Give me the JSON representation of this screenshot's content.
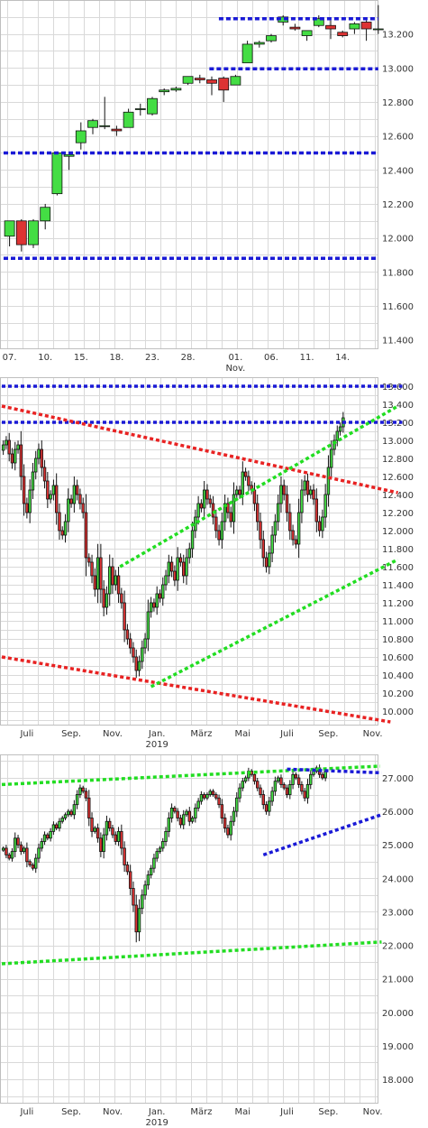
{
  "colors": {
    "up": "#44dd44",
    "down": "#dd3333",
    "blue_line": "#1a1ad6",
    "red_line": "#e82222",
    "green_line": "#22dd22",
    "grid": "#d9d9d9",
    "text": "#333333"
  },
  "chart_data": [
    {
      "type": "candlestick",
      "ylim": [
        11350,
        13400
      ],
      "yticks": [
        11400,
        11600,
        11800,
        12000,
        12200,
        12400,
        12600,
        12800,
        13000,
        13200
      ],
      "ytick_labels": [
        "11.400",
        "11.600",
        "11.800",
        "12.000",
        "12.200",
        "12.400",
        "12.600",
        "12.800",
        "13.000",
        "13.200"
      ],
      "xticks": [
        {
          "label": "07.",
          "sub": "",
          "i": 0
        },
        {
          "label": "10.",
          "sub": "",
          "i": 3
        },
        {
          "label": "15.",
          "sub": "",
          "i": 6
        },
        {
          "label": "18.",
          "sub": "",
          "i": 9
        },
        {
          "label": "23.",
          "sub": "",
          "i": 12
        },
        {
          "label": "28.",
          "sub": "",
          "i": 15
        },
        {
          "label": "01.",
          "sub": "Nov.",
          "i": 19
        },
        {
          "label": "06.",
          "sub": "",
          "i": 22
        },
        {
          "label": "11.",
          "sub": "",
          "i": 25
        },
        {
          "label": "14.",
          "sub": "",
          "i": 28
        }
      ],
      "candles": [
        {
          "o": 12010,
          "h": 12100,
          "l": 11950,
          "c": 12100
        },
        {
          "o": 12100,
          "h": 12110,
          "l": 11920,
          "c": 11960
        },
        {
          "o": 11960,
          "h": 12110,
          "l": 11940,
          "c": 12100
        },
        {
          "o": 12100,
          "h": 12200,
          "l": 12050,
          "c": 12180
        },
        {
          "o": 12260,
          "h": 12500,
          "l": 12250,
          "c": 12500
        },
        {
          "o": 12480,
          "h": 12500,
          "l": 12400,
          "c": 12490
        },
        {
          "o": 12560,
          "h": 12680,
          "l": 12520,
          "c": 12630
        },
        {
          "o": 12650,
          "h": 12700,
          "l": 12610,
          "c": 12690
        },
        {
          "o": 12660,
          "h": 12830,
          "l": 12640,
          "c": 12660
        },
        {
          "o": 12640,
          "h": 12660,
          "l": 12600,
          "c": 12630
        },
        {
          "o": 12650,
          "h": 12760,
          "l": 12650,
          "c": 12740
        },
        {
          "o": 12760,
          "h": 12790,
          "l": 12720,
          "c": 12760
        },
        {
          "o": 12730,
          "h": 12830,
          "l": 12720,
          "c": 12820
        },
        {
          "o": 12860,
          "h": 12880,
          "l": 12840,
          "c": 12870
        },
        {
          "o": 12870,
          "h": 12890,
          "l": 12860,
          "c": 12880
        },
        {
          "o": 12910,
          "h": 12950,
          "l": 12900,
          "c": 12950
        },
        {
          "o": 12940,
          "h": 12960,
          "l": 12910,
          "c": 12930
        },
        {
          "o": 12930,
          "h": 12950,
          "l": 12840,
          "c": 12910
        },
        {
          "o": 12940,
          "h": 12950,
          "l": 12800,
          "c": 12870
        },
        {
          "o": 12900,
          "h": 12960,
          "l": 12900,
          "c": 12950
        },
        {
          "o": 13030,
          "h": 13160,
          "l": 13030,
          "c": 13140
        },
        {
          "o": 13140,
          "h": 13160,
          "l": 13120,
          "c": 13150
        },
        {
          "o": 13160,
          "h": 13200,
          "l": 13150,
          "c": 13190
        },
        {
          "o": 13270,
          "h": 13310,
          "l": 13250,
          "c": 13300
        },
        {
          "o": 13240,
          "h": 13260,
          "l": 13220,
          "c": 13230
        },
        {
          "o": 13190,
          "h": 13220,
          "l": 13160,
          "c": 13220
        },
        {
          "o": 13250,
          "h": 13310,
          "l": 13240,
          "c": 13290
        },
        {
          "o": 13250,
          "h": 13280,
          "l": 13170,
          "c": 13230
        },
        {
          "o": 13210,
          "h": 13220,
          "l": 13180,
          "c": 13190
        },
        {
          "o": 13230,
          "h": 13270,
          "l": 13200,
          "c": 13260
        },
        {
          "o": 13270,
          "h": 13280,
          "l": 13160,
          "c": 13230
        },
        {
          "o": 13230,
          "h": 13370,
          "l": 13200,
          "c": 13230
        }
      ],
      "lines": [
        {
          "color": "blue",
          "x": [
            17.6,
            31
          ],
          "y": [
            13290,
            13290
          ]
        },
        {
          "color": "blue",
          "x": [
            16.8,
            31
          ],
          "y": [
            12995,
            12995
          ]
        },
        {
          "color": "blue",
          "x": [
            -0.5,
            31
          ],
          "y": [
            12500,
            12500
          ]
        },
        {
          "color": "blue",
          "x": [
            -0.5,
            31
          ],
          "y": [
            11880,
            11880
          ]
        }
      ]
    },
    {
      "type": "candlestick",
      "ylim": [
        9850,
        13700
      ],
      "yticks": [
        10000,
        10200,
        10400,
        10600,
        10800,
        11000,
        11200,
        11400,
        11600,
        11800,
        12000,
        12200,
        12400,
        12600,
        12800,
        13000,
        13200,
        13400,
        13600
      ],
      "ytick_labels": [
        "10.000",
        "10.200",
        "10.400",
        "10.600",
        "10.800",
        "11.000",
        "11.200",
        "11.400",
        "11.600",
        "11.800",
        "12.000",
        "12.200",
        "12.400",
        "12.600",
        "12.800",
        "13.000",
        "13.200",
        "13.400",
        "13.600"
      ],
      "xticks": [
        {
          "label": "Juli",
          "sub": "",
          "i": 8
        },
        {
          "label": "Sep.",
          "sub": "",
          "i": 23
        },
        {
          "label": "Nov.",
          "sub": "",
          "i": 37
        },
        {
          "label": "Jan.",
          "sub": "2019",
          "i": 52
        },
        {
          "label": "März",
          "sub": "",
          "i": 67
        },
        {
          "label": "Mai",
          "sub": "",
          "i": 81
        },
        {
          "label": "Juli",
          "sub": "",
          "i": 96
        },
        {
          "label": "Sep.",
          "sub": "",
          "i": 110
        },
        {
          "label": "Nov.",
          "sub": "",
          "i": 125
        }
      ],
      "closes": [
        12950,
        13000,
        12850,
        12750,
        12900,
        12950,
        12600,
        12300,
        12200,
        12450,
        12650,
        12800,
        12900,
        12700,
        12550,
        12350,
        12400,
        12500,
        12200,
        12000,
        11950,
        12100,
        12350,
        12300,
        12500,
        12400,
        12300,
        12200,
        11700,
        11650,
        11500,
        11350,
        11700,
        11350,
        11150,
        11300,
        11600,
        11400,
        11500,
        11300,
        11200,
        10900,
        10800,
        10700,
        10600,
        10450,
        10550,
        10700,
        10800,
        11100,
        11200,
        11150,
        11300,
        11250,
        11400,
        11500,
        11650,
        11550,
        11450,
        11700,
        11650,
        11500,
        11700,
        11800,
        12000,
        12150,
        12300,
        12250,
        12450,
        12350,
        12300,
        12150,
        12000,
        11900,
        12100,
        12300,
        12200,
        12100,
        12400,
        12450,
        12400,
        12650,
        12600,
        12500,
        12450,
        12300,
        12100,
        11900,
        11700,
        11600,
        11750,
        11950,
        12100,
        12300,
        12500,
        12400,
        12200,
        12000,
        11900,
        11850,
        12200,
        12450,
        12550,
        12400,
        12450,
        12350,
        12100,
        12000,
        12150,
        12400,
        12700,
        12900,
        13000,
        13100,
        13150,
        13250
      ],
      "lines": [
        {
          "color": "blue",
          "x": [
            -0.5,
            135
          ],
          "y": [
            13600,
            13600
          ]
        },
        {
          "color": "blue",
          "x": [
            -0.5,
            135
          ],
          "y": [
            13200,
            13200
          ]
        },
        {
          "color": "red",
          "x": [
            -0.5,
            133.5
          ],
          "y": [
            13380,
            12420
          ]
        },
        {
          "color": "red",
          "x": [
            -0.5,
            131
          ],
          "y": [
            10600,
            9880
          ]
        },
        {
          "color": "green",
          "x": [
            39.5,
            133.5
          ],
          "y": [
            11600,
            13380
          ]
        },
        {
          "color": "green",
          "x": [
            50,
            133.5
          ],
          "y": [
            10270,
            11680
          ]
        }
      ]
    },
    {
      "type": "candlestick",
      "ylim": [
        17300,
        27700
      ],
      "yticks": [
        18000,
        19000,
        20000,
        21000,
        22000,
        23000,
        24000,
        25000,
        26000,
        27000
      ],
      "ytick_labels": [
        "18.000",
        "19.000",
        "20.000",
        "21.000",
        "22.000",
        "23.000",
        "24.000",
        "25.000",
        "26.000",
        "27.000"
      ],
      "xticks": [
        {
          "label": "Juli",
          "sub": "",
          "i": 8
        },
        {
          "label": "Sep.",
          "sub": "",
          "i": 23
        },
        {
          "label": "Nov.",
          "sub": "",
          "i": 37
        },
        {
          "label": "Jan.",
          "sub": "2019",
          "i": 52
        },
        {
          "label": "März",
          "sub": "",
          "i": 67
        },
        {
          "label": "Mai",
          "sub": "",
          "i": 81
        },
        {
          "label": "Juli",
          "sub": "",
          "i": 96
        },
        {
          "label": "Sep.",
          "sub": "",
          "i": 110
        },
        {
          "label": "Nov.",
          "sub": "",
          "i": 125
        }
      ],
      "closes": [
        24900,
        24700,
        24600,
        24800,
        25200,
        25000,
        24800,
        24900,
        24500,
        24400,
        24300,
        24600,
        24900,
        25100,
        25300,
        25200,
        25400,
        25600,
        25500,
        25700,
        25800,
        25900,
        26000,
        25900,
        26200,
        26500,
        26700,
        26600,
        26400,
        25800,
        25400,
        25500,
        25200,
        24800,
        25300,
        25700,
        25500,
        25300,
        25100,
        25400,
        24900,
        24400,
        24200,
        23700,
        23200,
        22400,
        23100,
        23500,
        23800,
        24100,
        24300,
        24600,
        24800,
        24900,
        25100,
        25400,
        25800,
        26100,
        26000,
        25800,
        25600,
        25900,
        26000,
        25700,
        25800,
        26100,
        26300,
        26500,
        26400,
        26500,
        26600,
        26500,
        26400,
        26200,
        25800,
        25500,
        25300,
        25700,
        26000,
        26400,
        26700,
        26900,
        27000,
        27200,
        27100,
        26900,
        26700,
        26500,
        26200,
        26000,
        26300,
        26600,
        26900,
        27000,
        26800,
        26700,
        26500,
        26800,
        27100,
        27000,
        26800,
        26600,
        26400,
        26800,
        27100,
        27200,
        27300,
        27100,
        27000,
        27200
      ],
      "lines": [
        {
          "color": "green",
          "x": [
            -0.5,
            127.5
          ],
          "y": [
            26800,
            27350
          ]
        },
        {
          "color": "green",
          "x": [
            -0.5,
            128
          ],
          "y": [
            21450,
            22100
          ]
        },
        {
          "color": "blue",
          "x": [
            96,
            128
          ],
          "y": [
            27260,
            27150
          ]
        },
        {
          "color": "blue",
          "x": [
            88,
            128
          ],
          "y": [
            24700,
            25900
          ]
        }
      ]
    }
  ]
}
